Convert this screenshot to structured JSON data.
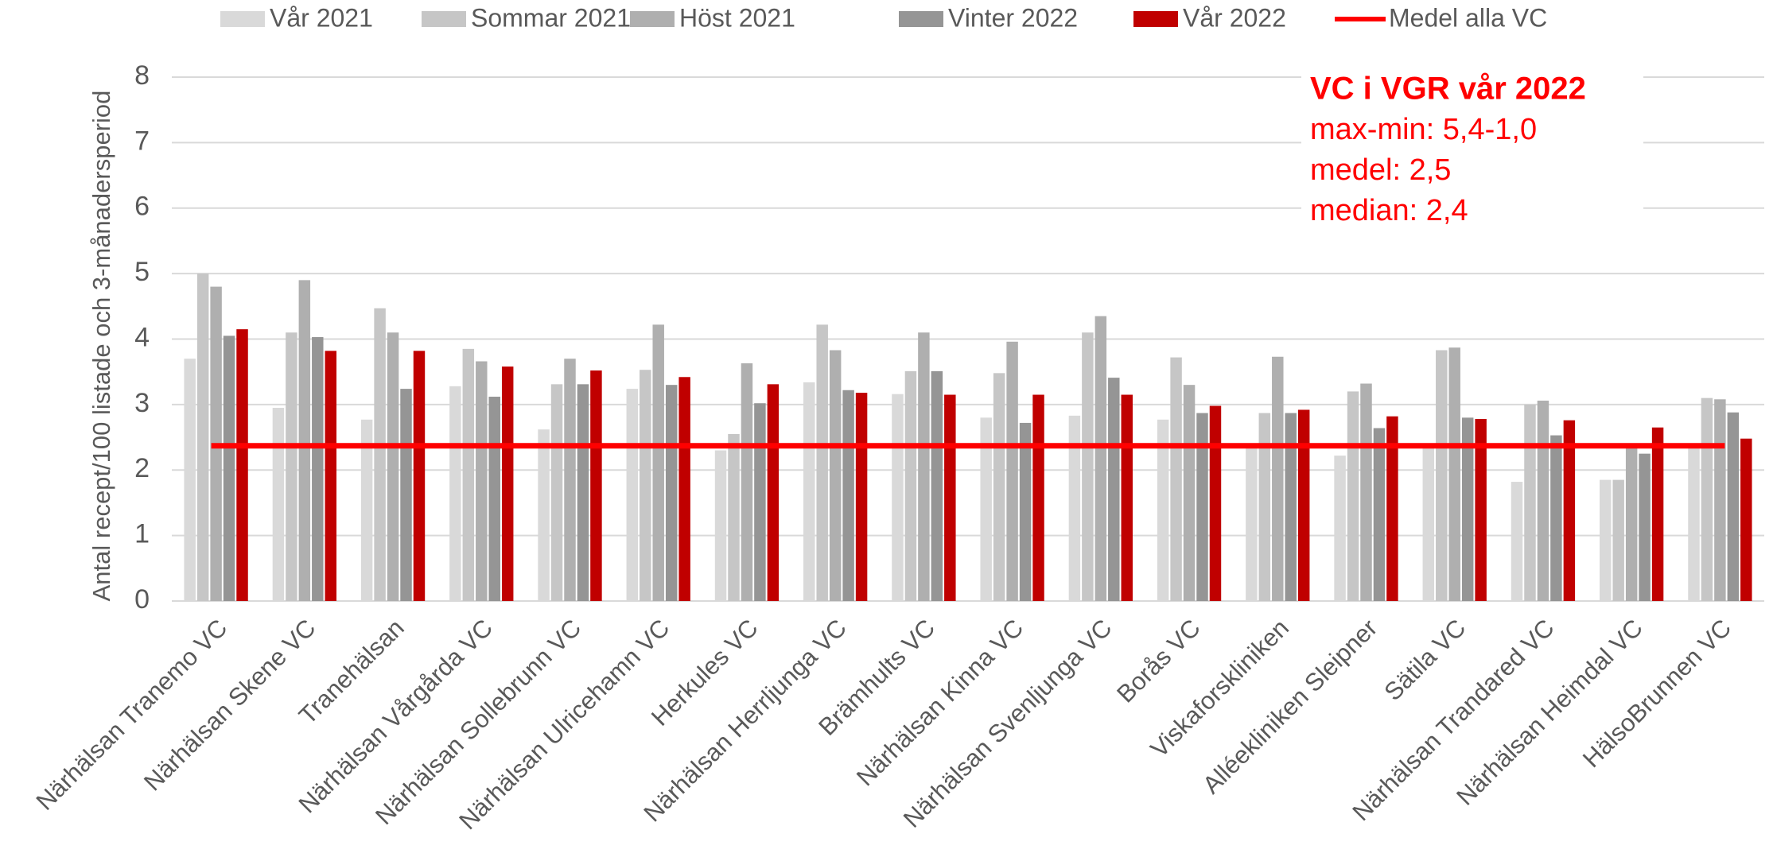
{
  "chart_data": {
    "type": "bar",
    "y_label": "Antal recept/100 listade och 3-månadersperiod",
    "categories": [
      "Närhälsan Tranemo VC",
      "Närhälsan Skene VC",
      "Tranehälsan",
      "Närhälsan Vårgårda VC",
      "Närhälsan Sollebrunn VC",
      "Närhälsan Ulricehamn VC",
      "Herkules VC",
      "Närhälsan Herrljunga VC",
      "Brämhults VC",
      "Närhälsan Kinna VC",
      "Närhälsan Svenljunga VC",
      "Borås VC",
      "Viskaforskliniken",
      "Alléekliniken Sleipner",
      "Sätila VC",
      "Närhälsan Trandared VC",
      "Närhälsan Heimdal VC",
      "HälsoBrunnen VC"
    ],
    "series": [
      {
        "name": "Vår 2021",
        "color": "#d9d9d9",
        "values": [
          3.7,
          2.95,
          2.77,
          3.28,
          2.62,
          3.24,
          2.3,
          3.34,
          3.16,
          2.8,
          2.83,
          2.77,
          2.35,
          2.22,
          2.35,
          1.82,
          1.85,
          2.35
        ]
      },
      {
        "name": "Sommar 2021",
        "color": "#c6c6c6",
        "values": [
          5.0,
          4.1,
          4.47,
          3.85,
          3.31,
          3.53,
          2.55,
          4.22,
          3.51,
          3.48,
          4.1,
          3.72,
          2.87,
          3.2,
          3.83,
          3.0,
          1.85,
          3.1
        ]
      },
      {
        "name": "Höst 2021",
        "color": "#afafaf",
        "values": [
          4.8,
          4.9,
          4.1,
          3.66,
          3.7,
          4.22,
          3.63,
          3.83,
          4.1,
          3.96,
          4.35,
          3.3,
          3.73,
          3.32,
          3.87,
          3.06,
          2.35,
          3.08
        ]
      },
      {
        "name": "Vinter 2022",
        "color": "#959595",
        "values": [
          4.05,
          4.03,
          3.24,
          3.12,
          3.31,
          3.3,
          3.02,
          3.22,
          3.51,
          2.72,
          3.41,
          2.87,
          2.87,
          2.64,
          2.8,
          2.53,
          2.25,
          2.88
        ]
      },
      {
        "name": "Vår 2022",
        "color": "#c00000",
        "values": [
          4.15,
          3.82,
          3.82,
          3.58,
          3.52,
          3.42,
          3.31,
          3.18,
          3.15,
          3.15,
          3.15,
          2.98,
          2.92,
          2.82,
          2.78,
          2.76,
          2.65,
          2.48
        ]
      }
    ],
    "mean_line": {
      "name": "Medel alla VC",
      "color": "#ff0000",
      "value": 2.37
    },
    "annotation": {
      "title": "VC i VGR vår 2022",
      "lines": [
        "max-min: 5,4-1,0",
        "medel: 2,5",
        "median: 2,4"
      ],
      "color": "#ff0000"
    },
    "ylim": [
      0,
      8
    ],
    "yticks": [
      0,
      1,
      2,
      3,
      4,
      5,
      6,
      7,
      8
    ],
    "grid": true,
    "legend": "top"
  }
}
